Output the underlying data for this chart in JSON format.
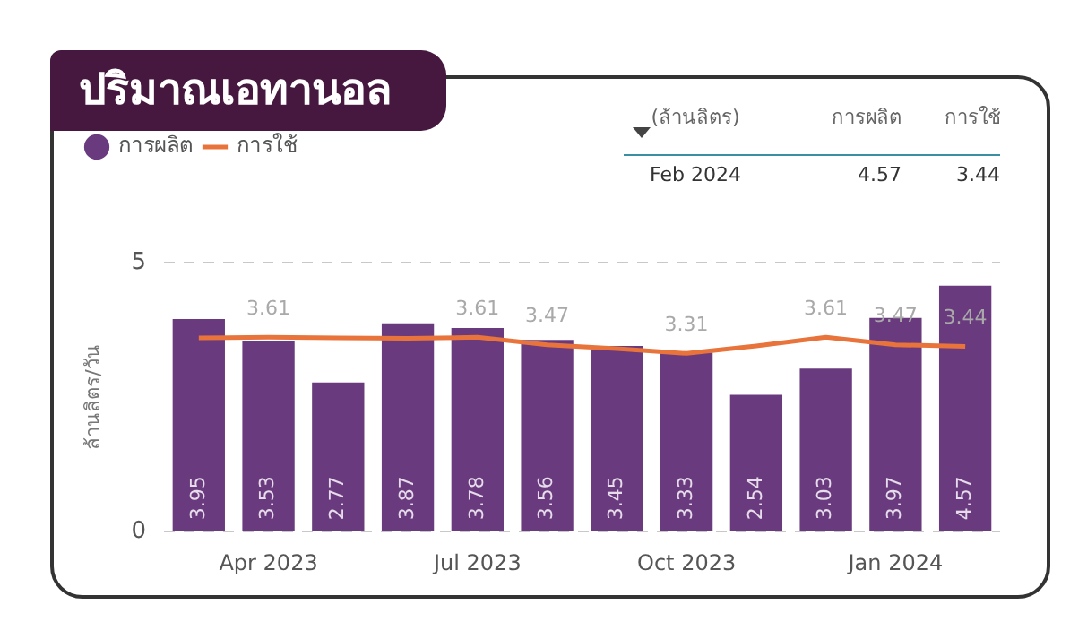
{
  "chart_data": {
    "type": "bar",
    "title": "ปริมาณเอทานอล",
    "ylabel": "ล้านลิตร/วัน",
    "categories": [
      null,
      "Apr 2023",
      null,
      null,
      "Jul 2023",
      null,
      null,
      "Oct 2023",
      null,
      null,
      "Jan 2024",
      null
    ],
    "series": [
      {
        "name": "การผลิต",
        "color": "#6a3a7e",
        "values": [
          3.95,
          3.53,
          2.77,
          3.87,
          3.78,
          3.56,
          3.45,
          3.33,
          2.54,
          3.03,
          3.97,
          4.57
        ],
        "value_labels": [
          "3.95",
          "3.53",
          "2.77",
          "3.87",
          "3.78",
          "3.56",
          "3.45",
          "3.33",
          "2.54",
          "3.03",
          "3.97",
          "4.57"
        ]
      },
      {
        "name": "การใช้",
        "type": "line",
        "color": "#e8743b",
        "values": [
          3.6,
          3.61,
          3.6,
          3.59,
          3.61,
          3.47,
          3.4,
          3.31,
          3.45,
          3.61,
          3.47,
          3.44
        ],
        "value_labels": [
          null,
          "3.61",
          null,
          null,
          "3.61",
          "3.47",
          null,
          "3.31",
          null,
          "3.61",
          "3.47",
          "3.44"
        ]
      }
    ],
    "ylim": [
      0,
      5
    ],
    "yticks": [
      0,
      5
    ],
    "grid": "y",
    "legend": "top left",
    "marker": "none",
    "annotations": [
      "(ล้านลิตร)",
      "การผลิต",
      "การใช้",
      "Feb 2024",
      "4.57",
      "3.44"
    ]
  }
}
